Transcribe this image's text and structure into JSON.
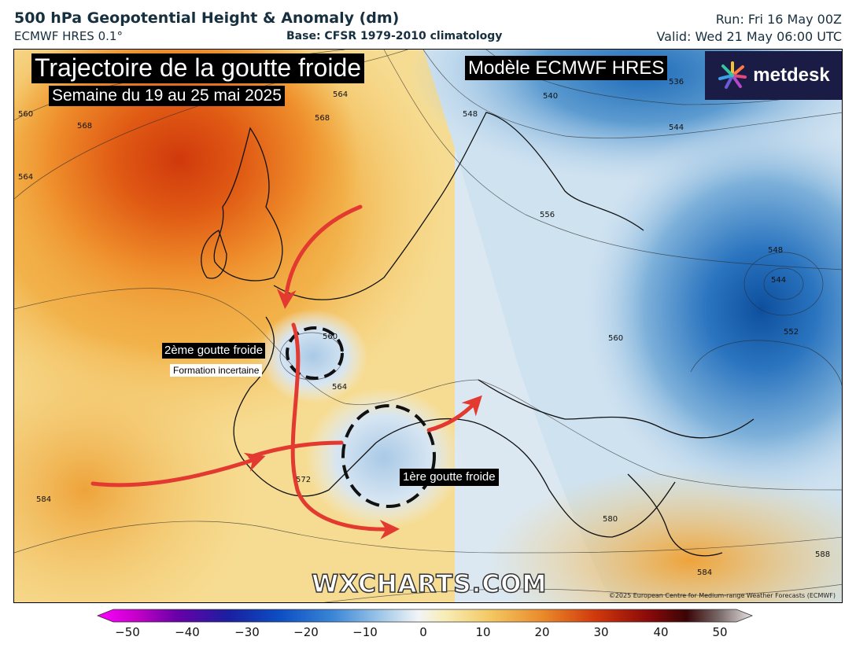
{
  "header": {
    "title": "500 hPa Geopotential Height & Anomaly (dm)",
    "subtitle": "ECMWF HRES 0.1°",
    "base": "Base: CFSR 1979-2010 climatology",
    "run": "Run: Fri 16 May 00Z",
    "valid": "Valid: Wed 21 May 06:00 UTC"
  },
  "overlay": {
    "main_title": "Trajectoire de la goutte froide",
    "main_subtitle": "Semaine du 19 au 25 mai 2025",
    "model_label": "Modèle ECMWF HRES",
    "brand": "metdesk",
    "second_drop_label": "2ème goutte froide",
    "second_drop_note": "Formation incertaine",
    "first_drop_label": "1ère goutte froide",
    "watermark": "WXCHARTS.COM",
    "copyright": "©2025 European Centre for Medium-range Weather Forecasts (ECMWF)"
  },
  "contours": {
    "labels": [
      "560",
      "568",
      "564",
      "568",
      "564",
      "548",
      "540",
      "536",
      "544",
      "556",
      "548",
      "544",
      "552",
      "560",
      "560",
      "564",
      "572",
      "580",
      "584",
      "584",
      "588"
    ]
  },
  "colorbar": {
    "ticks": [
      "−50",
      "−40",
      "−30",
      "−20",
      "−10",
      "0",
      "10",
      "20",
      "30",
      "40",
      "50"
    ]
  },
  "colors": {
    "positive_anomaly": "#e2661c",
    "negative_anomaly": "#1f6fb8",
    "arrow": "#e23a30"
  }
}
